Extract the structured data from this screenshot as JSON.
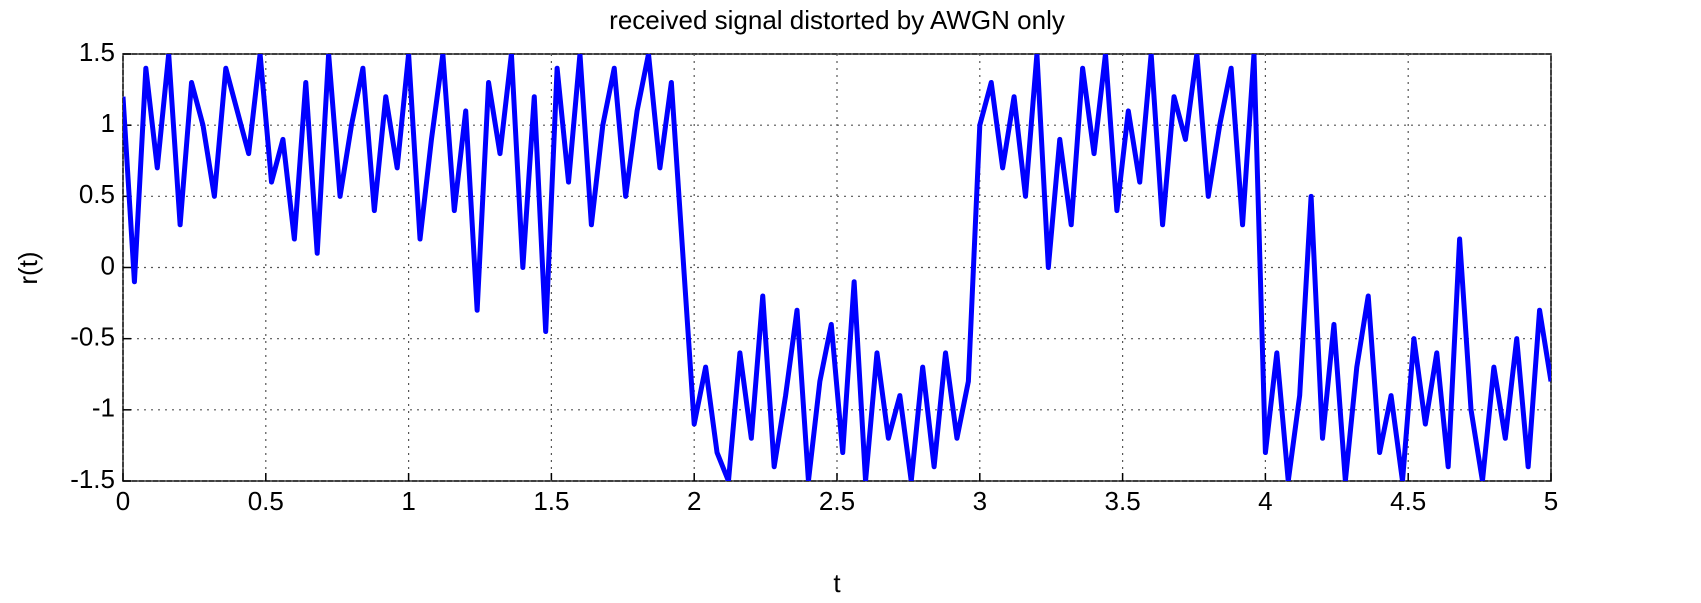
{
  "chart_data": {
    "type": "line",
    "title": "received signal distorted by AWGN only",
    "xlabel": "t",
    "ylabel": "r(t)",
    "xlim": [
      0,
      5
    ],
    "ylim": [
      -1.5,
      1.5
    ],
    "xticks": [
      0,
      0.5,
      1,
      1.5,
      2,
      2.5,
      3,
      3.5,
      4,
      4.5,
      5
    ],
    "yticks": [
      -1.5,
      -1,
      -0.5,
      0,
      0.5,
      1,
      1.5
    ],
    "grid": true,
    "x": [
      0,
      0.04,
      0.08,
      0.12,
      0.16,
      0.2,
      0.24,
      0.28,
      0.32,
      0.36,
      0.4,
      0.44,
      0.48,
      0.52,
      0.56,
      0.6,
      0.64,
      0.68,
      0.72,
      0.76,
      0.8,
      0.84,
      0.88,
      0.92,
      0.96,
      1,
      1.04,
      1.08,
      1.12,
      1.16,
      1.2,
      1.24,
      1.28,
      1.32,
      1.36,
      1.4,
      1.44,
      1.48,
      1.52,
      1.56,
      1.6,
      1.64,
      1.68,
      1.72,
      1.76,
      1.8,
      1.84,
      1.88,
      1.92,
      1.96,
      2,
      2.04,
      2.08,
      2.12,
      2.16,
      2.2,
      2.24,
      2.28,
      2.32,
      2.36,
      2.4,
      2.44,
      2.48,
      2.52,
      2.56,
      2.6,
      2.64,
      2.68,
      2.72,
      2.76,
      2.8,
      2.84,
      2.88,
      2.92,
      2.96,
      3,
      3.04,
      3.08,
      3.12,
      3.16,
      3.2,
      3.24,
      3.28,
      3.32,
      3.36,
      3.4,
      3.44,
      3.48,
      3.52,
      3.56,
      3.6,
      3.64,
      3.68,
      3.72,
      3.76,
      3.8,
      3.84,
      3.88,
      3.92,
      3.96,
      4,
      4.04,
      4.08,
      4.12,
      4.16,
      4.2,
      4.24,
      4.28,
      4.32,
      4.36,
      4.4,
      4.44,
      4.48,
      4.52,
      4.56,
      4.6,
      4.64,
      4.68,
      4.72,
      4.76,
      4.8,
      4.84,
      4.88,
      4.92,
      4.96,
      5
    ],
    "series": [
      {
        "name": "r(t)",
        "color": "#0000ff",
        "values": [
          1.2,
          -0.1,
          1.4,
          0.7,
          1.5,
          0.3,
          1.3,
          1.0,
          0.5,
          1.4,
          1.1,
          0.8,
          1.5,
          0.6,
          0.9,
          0.2,
          1.3,
          0.1,
          1.5,
          0.5,
          1.0,
          1.4,
          0.4,
          1.2,
          0.7,
          1.5,
          0.2,
          0.9,
          1.5,
          0.4,
          1.1,
          -0.3,
          1.3,
          0.8,
          1.5,
          0.0,
          1.2,
          -0.45,
          1.4,
          0.6,
          1.5,
          0.3,
          1.0,
          1.4,
          0.5,
          1.1,
          1.5,
          0.7,
          1.3,
          0.1,
          -1.1,
          -0.7,
          -1.3,
          -1.5,
          -0.6,
          -1.2,
          -0.2,
          -1.4,
          -0.9,
          -0.3,
          -1.5,
          -0.8,
          -0.4,
          -1.3,
          -0.1,
          -1.5,
          -0.6,
          -1.2,
          -0.9,
          -1.5,
          -0.7,
          -1.4,
          -0.6,
          -1.2,
          -0.8,
          1.0,
          1.3,
          0.7,
          1.2,
          0.5,
          1.5,
          0.0,
          0.9,
          0.3,
          1.4,
          0.8,
          1.5,
          0.4,
          1.1,
          0.6,
          1.5,
          0.3,
          1.2,
          0.9,
          1.5,
          0.5,
          1.0,
          1.4,
          0.3,
          1.5,
          -1.3,
          -0.6,
          -1.5,
          -0.9,
          0.5,
          -1.2,
          -0.4,
          -1.5,
          -0.7,
          -0.2,
          -1.3,
          -0.9,
          -1.5,
          -0.5,
          -1.1,
          -0.6,
          -1.4,
          0.2,
          -1.0,
          -1.5,
          -0.7,
          -1.2,
          -0.5,
          -1.4,
          -0.3,
          -0.8
        ]
      }
    ]
  }
}
